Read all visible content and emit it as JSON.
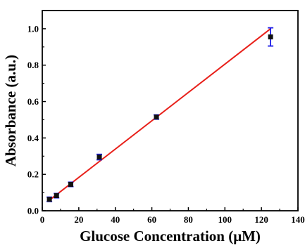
{
  "chart_data": {
    "type": "scatter",
    "title": "",
    "xlabel": "Glucose Concentration (μM)",
    "ylabel": "Absorbance (a.u.)",
    "xlim": [
      0,
      140
    ],
    "ylim": [
      0,
      1.1
    ],
    "x_ticks": [
      0,
      20,
      40,
      60,
      80,
      100,
      120,
      140
    ],
    "y_ticks": [
      0.0,
      0.2,
      0.4,
      0.6,
      0.8,
      1.0
    ],
    "x_tick_labels": [
      "0",
      "20",
      "40",
      "60",
      "80",
      "100",
      "120",
      "140"
    ],
    "y_tick_labels": [
      "0.0",
      "0.2",
      "0.4",
      "0.6",
      "0.8",
      "1.0"
    ],
    "grid": false,
    "legend": false,
    "colors": {
      "marker": "#111111",
      "errorbar": "#1a1ae6",
      "fit": "#e8201a"
    },
    "points": [
      {
        "x": 3.9,
        "y": 0.063,
        "err": 0.012
      },
      {
        "x": 7.8,
        "y": 0.083,
        "err": 0.012
      },
      {
        "x": 15.6,
        "y": 0.145,
        "err": 0.012
      },
      {
        "x": 31.25,
        "y": 0.295,
        "err": 0.015
      },
      {
        "x": 62.5,
        "y": 0.515,
        "err": 0.012
      },
      {
        "x": 125,
        "y": 0.955,
        "err": 0.05
      }
    ],
    "fit_line": {
      "x": [
        3.9,
        125
      ],
      "y": [
        0.058,
        1.0
      ]
    }
  }
}
